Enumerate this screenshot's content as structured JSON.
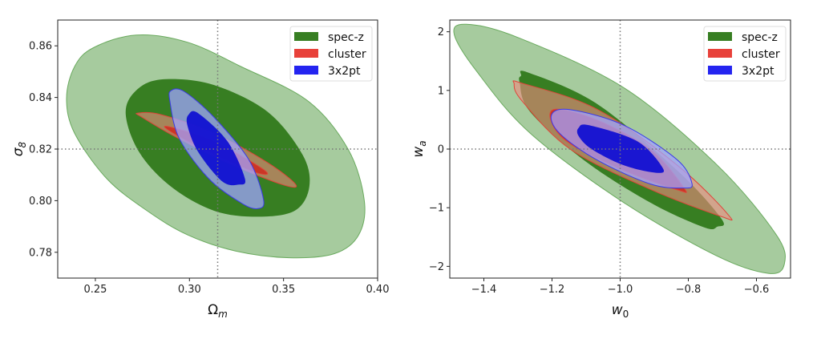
{
  "colors": {
    "spec_outer": "#a6cb9e",
    "spec_outer_edge": "#6aaa5e",
    "spec_inner": "#377e22",
    "cluster_outer": "#f08a80",
    "cluster_inner": "#d0281c",
    "cluster_edge": "#e0453a",
    "x2pt_outer": "#a0a4ff",
    "x2pt_inner": "#0a0ad2",
    "x2pt_edge": "#3a3ae8",
    "legend_spec": "#377e22",
    "legend_cluster": "#e8413a",
    "legend_3x2pt": "#2424f0"
  },
  "chart_data": [
    {
      "type": "contour",
      "xlabel": {
        "base": "Ω",
        "sub": "m"
      },
      "ylabel": {
        "base": "σ",
        "sub": "8"
      },
      "xlim": [
        0.23,
        0.4
      ],
      "ylim": [
        0.77,
        0.87
      ],
      "xticks": [
        0.25,
        0.3,
        0.35,
        0.4
      ],
      "xtick_labels": [
        "0.25",
        "0.30",
        "0.35",
        "0.40"
      ],
      "yticks": [
        0.78,
        0.8,
        0.82,
        0.84,
        0.86
      ],
      "ytick_labels": [
        "0.78",
        "0.80",
        "0.82",
        "0.84",
        "0.86"
      ],
      "reference": {
        "x": 0.315,
        "y": 0.82
      },
      "legend": {
        "placement": "top-right",
        "entries": [
          "spec-z",
          "cluster",
          "3x2pt"
        ]
      },
      "contours": [
        {
          "series": "spec-z",
          "level": "95%",
          "points": [
            [
              0.2347,
              0.8396
            ],
            [
              0.239,
              0.852
            ],
            [
              0.249,
              0.8593
            ],
            [
              0.2718,
              0.8642
            ],
            [
              0.2989,
              0.8614
            ],
            [
              0.3273,
              0.852
            ],
            [
              0.363,
              0.8386
            ],
            [
              0.3843,
              0.8199
            ],
            [
              0.3929,
              0.8002
            ],
            [
              0.39,
              0.7868
            ],
            [
              0.3772,
              0.7795
            ],
            [
              0.353,
              0.7779
            ],
            [
              0.3245,
              0.7805
            ],
            [
              0.2989,
              0.7868
            ],
            [
              0.2775,
              0.7961
            ],
            [
              0.2561,
              0.8085
            ],
            [
              0.239,
              0.8261
            ]
          ]
        },
        {
          "series": "spec-z",
          "level": "68%",
          "points": [
            [
              0.2661,
              0.8344
            ],
            [
              0.2732,
              0.8437
            ],
            [
              0.2875,
              0.8471
            ],
            [
              0.3131,
              0.8448
            ],
            [
              0.3416,
              0.8344
            ],
            [
              0.3601,
              0.8178
            ],
            [
              0.3637,
              0.8054
            ],
            [
              0.3559,
              0.7961
            ],
            [
              0.3359,
              0.7938
            ],
            [
              0.3131,
              0.7961
            ],
            [
              0.2903,
              0.8054
            ],
            [
              0.2732,
              0.8189
            ]
          ]
        },
        {
          "series": "cluster",
          "level": "95%",
          "points": [
            [
              0.2725,
              0.8339
            ],
            [
              0.2846,
              0.8334
            ],
            [
              0.3131,
              0.8261
            ],
            [
              0.3416,
              0.8147
            ],
            [
              0.3566,
              0.8061
            ],
            [
              0.3487,
              0.8064
            ],
            [
              0.3202,
              0.8147
            ],
            [
              0.2917,
              0.8251
            ],
            [
              0.2747,
              0.8324
            ]
          ]
        },
        {
          "series": "cluster",
          "level": "68%",
          "points": [
            [
              0.2889,
              0.8287
            ],
            [
              0.3131,
              0.823
            ],
            [
              0.3402,
              0.8116
            ],
            [
              0.3345,
              0.8111
            ],
            [
              0.3103,
              0.8189
            ],
            [
              0.2903,
              0.8266
            ]
          ]
        },
        {
          "series": "3x2pt",
          "level": "95%",
          "points": [
            [
              0.2903,
              0.8427
            ],
            [
              0.2974,
              0.8422
            ],
            [
              0.3131,
              0.8323
            ],
            [
              0.3316,
              0.8158
            ],
            [
              0.3394,
              0.8002
            ],
            [
              0.3359,
              0.7969
            ],
            [
              0.3273,
              0.7992
            ],
            [
              0.3103,
              0.8085
            ],
            [
              0.2946,
              0.8241
            ],
            [
              0.2896,
              0.8386
            ]
          ]
        },
        {
          "series": "3x2pt",
          "level": "68%",
          "points": [
            [
              0.2996,
              0.8334
            ],
            [
              0.3046,
              0.8339
            ],
            [
              0.3202,
              0.823
            ],
            [
              0.3295,
              0.8085
            ],
            [
              0.3259,
              0.8062
            ],
            [
              0.3174,
              0.8075
            ],
            [
              0.3046,
              0.8189
            ],
            [
              0.2989,
              0.8292
            ]
          ]
        }
      ]
    },
    {
      "type": "contour",
      "xlabel": {
        "base": "w",
        "sub": "0"
      },
      "ylabel": {
        "base": "w",
        "sub": "a"
      },
      "xlim": [
        -1.5,
        -0.5
      ],
      "ylim": [
        -2.2,
        2.2
      ],
      "xticks": [
        -1.4,
        -1.2,
        -1.0,
        -0.8,
        -0.6
      ],
      "xtick_labels": [
        "−1.4",
        "−1.2",
        "−1.0",
        "−0.8",
        "−0.6"
      ],
      "yticks": [
        -2,
        -1,
        0,
        1,
        2
      ],
      "ytick_labels": [
        "−2",
        "−1",
        "0",
        "1",
        "2"
      ],
      "reference": {
        "x": -1.0,
        "y": 0
      },
      "legend": {
        "placement": "top-right",
        "entries": [
          "spec-z",
          "cluster",
          "3x2pt"
        ]
      },
      "contours": [
        {
          "series": "spec-z",
          "level": "95%",
          "points": [
            [
              -1.487,
              1.955
            ],
            [
              -1.452,
              2.127
            ],
            [
              -1.303,
              1.909
            ],
            [
              -0.989,
              1.044
            ],
            [
              -0.7146,
              -0.277
            ],
            [
              -0.542,
              -1.46
            ],
            [
              -0.518,
              -1.96
            ],
            [
              -0.565,
              -2.12
            ],
            [
              -0.715,
              -1.825
            ],
            [
              -0.989,
              -0.914
            ],
            [
              -1.264,
              0.27
            ],
            [
              -1.42,
              1.317
            ]
          ]
        },
        {
          "series": "spec-z",
          "level": "68%",
          "points": [
            [
              -1.291,
              1.249
            ],
            [
              -1.271,
              1.307
            ],
            [
              -1.068,
              0.77
            ],
            [
              -0.832,
              -0.368
            ],
            [
              -0.703,
              -1.187
            ],
            [
              -0.715,
              -1.324
            ],
            [
              -0.754,
              -1.333
            ],
            [
              -0.911,
              -0.914
            ],
            [
              -1.107,
              -0.186
            ],
            [
              -1.264,
              0.634
            ],
            [
              -1.295,
              1.135
            ]
          ]
        },
        {
          "series": "cluster",
          "level": "95%",
          "points": [
            [
              -1.311,
              1.112
            ],
            [
              -1.287,
              1.121
            ],
            [
              -1.068,
              0.679
            ],
            [
              -0.832,
              -0.277
            ],
            [
              -0.683,
              -1.119
            ],
            [
              -0.707,
              -1.142
            ],
            [
              -0.911,
              -0.687
            ],
            [
              -1.146,
              -0.004
            ],
            [
              -1.287,
              0.815
            ]
          ]
        },
        {
          "series": "cluster",
          "level": "68%",
          "points": [
            [
              -1.189,
              0.679
            ],
            [
              -1.068,
              0.497
            ],
            [
              -0.911,
              -0.004
            ],
            [
              -0.8125,
              -0.664
            ],
            [
              -0.832,
              -0.695
            ],
            [
              -0.989,
              -0.368
            ],
            [
              -1.146,
              0.087
            ],
            [
              -1.201,
              0.452
            ]
          ]
        },
        {
          "series": "3x2pt",
          "level": "95%",
          "points": [
            [
              -1.201,
              0.589
            ],
            [
              -1.146,
              0.671
            ],
            [
              -0.989,
              0.406
            ],
            [
              -0.832,
              -0.186
            ],
            [
              -0.789,
              -0.596
            ],
            [
              -0.816,
              -0.664
            ],
            [
              -0.911,
              -0.596
            ],
            [
              -1.068,
              -0.186
            ],
            [
              -1.178,
              0.269
            ]
          ]
        },
        {
          "series": "3x2pt",
          "level": "68%",
          "points": [
            [
              -1.122,
              0.361
            ],
            [
              -1.091,
              0.406
            ],
            [
              -0.95,
              0.133
            ],
            [
              -0.875,
              -0.322
            ],
            [
              -0.895,
              -0.404
            ],
            [
              -0.989,
              -0.277
            ],
            [
              -1.083,
              -0.004
            ],
            [
              -1.122,
              0.224
            ]
          ]
        }
      ]
    }
  ]
}
